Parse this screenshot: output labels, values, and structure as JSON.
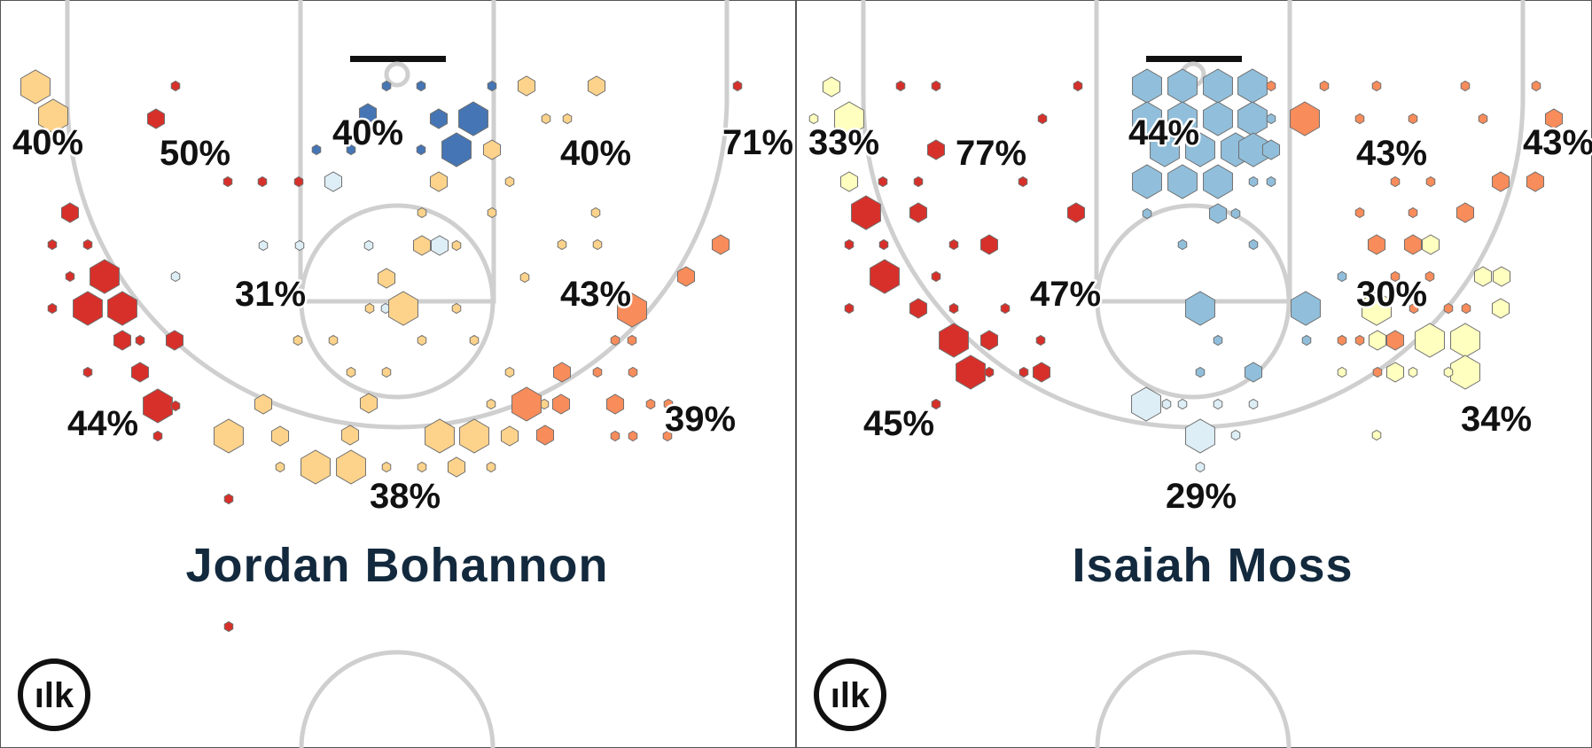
{
  "chart_data": [
    {
      "type": "hexbin",
      "player": "Jordan Bohannon",
      "zone_labels": [
        "40%",
        "50%",
        "40%",
        "40%",
        "71%",
        "31%",
        "43%",
        "44%",
        "39%",
        "38%"
      ],
      "colors": {
        "red": "#d7302a",
        "orange": "#f98c5b",
        "light_orange": "#fdd38c",
        "yellow": "#ffffbf",
        "light_blue": "#deeef6",
        "mid_blue": "#91bfdb",
        "blue": "#4575b4"
      },
      "hexes": [
        [
          "light_orange",
          3
        ],
        [
          "light_orange",
          3
        ],
        [
          "light_orange",
          1
        ],
        [
          "light_orange",
          1
        ],
        [
          "light_orange",
          2
        ],
        [
          "light_orange",
          2
        ],
        [
          "red",
          1
        ],
        [
          "red",
          1
        ],
        [
          "red",
          2
        ],
        [
          "red",
          2
        ],
        [
          "red",
          1
        ],
        [
          "red",
          2
        ],
        [
          "red",
          3
        ],
        [
          "red",
          1
        ],
        [
          "red",
          2
        ],
        [
          "red",
          3
        ],
        [
          "red",
          2
        ],
        [
          "red",
          2
        ],
        [
          "red",
          2
        ],
        [
          "red",
          1
        ],
        [
          "red",
          3
        ],
        [
          "red",
          3
        ],
        [
          "red",
          1
        ],
        [
          "red",
          1
        ],
        [
          "red",
          1
        ],
        [
          "red",
          1
        ],
        [
          "red",
          1
        ],
        [
          "red",
          1
        ],
        [
          "red",
          1
        ],
        [
          "red",
          1
        ],
        [
          "red",
          1
        ],
        [
          "red",
          1
        ],
        [
          "blue",
          3
        ],
        [
          "blue",
          2
        ],
        [
          "blue",
          3
        ],
        [
          "blue",
          1
        ],
        [
          "blue",
          2
        ],
        [
          "blue",
          1
        ],
        [
          "blue",
          1
        ],
        [
          "blue",
          1
        ],
        [
          "blue",
          1
        ],
        [
          "blue",
          1
        ],
        [
          "blue",
          1
        ],
        [
          "light_blue",
          2
        ],
        [
          "light_blue",
          1
        ],
        [
          "light_blue",
          2
        ],
        [
          "light_blue",
          1
        ],
        [
          "light_blue",
          1
        ],
        [
          "light_blue",
          1
        ],
        [
          "light_blue",
          1
        ],
        [
          "light_orange",
          2
        ],
        [
          "light_orange",
          2
        ],
        [
          "light_orange",
          3
        ],
        [
          "light_orange",
          1
        ],
        [
          "light_orange",
          1
        ],
        [
          "light_orange",
          1
        ],
        [
          "light_orange",
          2
        ],
        [
          "light_orange",
          2
        ],
        [
          "light_orange",
          1
        ],
        [
          "light_orange",
          1
        ],
        [
          "light_orange",
          1
        ],
        [
          "light_orange",
          1
        ],
        [
          "light_orange",
          1
        ],
        [
          "light_orange",
          1
        ],
        [
          "light_orange",
          1
        ],
        [
          "light_orange",
          1
        ],
        [
          "light_orange",
          1
        ],
        [
          "light_orange",
          1
        ],
        [
          "light_orange",
          1
        ],
        [
          "light_orange",
          1
        ],
        [
          "light_orange",
          1
        ],
        [
          "light_orange",
          1
        ],
        [
          "light_orange",
          2
        ],
        [
          "light_orange",
          3
        ],
        [
          "light_orange",
          2
        ],
        [
          "light_orange",
          3
        ],
        [
          "light_orange",
          3
        ],
        [
          "light_orange",
          2
        ],
        [
          "light_orange",
          2
        ],
        [
          "light_orange",
          3
        ],
        [
          "light_orange",
          3
        ],
        [
          "light_orange",
          2
        ],
        [
          "light_orange",
          1
        ],
        [
          "light_orange",
          1
        ],
        [
          "light_orange",
          1
        ],
        [
          "light_orange",
          1
        ],
        [
          "light_orange",
          1
        ],
        [
          "light_orange",
          1
        ],
        [
          "light_orange",
          2
        ],
        [
          "light_orange",
          1
        ],
        [
          "orange",
          3
        ],
        [
          "orange",
          2
        ],
        [
          "orange",
          2
        ],
        [
          "orange",
          2
        ],
        [
          "orange",
          3
        ],
        [
          "orange",
          2
        ],
        [
          "orange",
          2
        ],
        [
          "orange",
          1
        ],
        [
          "orange",
          1
        ],
        [
          "orange",
          1
        ],
        [
          "orange",
          1
        ],
        [
          "orange",
          1
        ],
        [
          "orange",
          2
        ],
        [
          "orange",
          1
        ],
        [
          "orange",
          1
        ],
        [
          "orange",
          1
        ],
        [
          "orange",
          1
        ]
      ]
    },
    {
      "type": "hexbin",
      "player": "Isaiah Moss",
      "zone_labels": [
        "33%",
        "77%",
        "44%",
        "43%",
        "43%",
        "47%",
        "30%",
        "45%",
        "34%",
        "29%"
      ],
      "colors": {
        "red": "#d7302a",
        "orange": "#f98c5b",
        "light_orange": "#fdd38c",
        "yellow": "#ffffbf",
        "light_blue": "#deeef6",
        "mid_blue": "#91bfdb",
        "blue": "#4575b4"
      },
      "hexes": [
        [
          "yellow",
          2
        ],
        [
          "yellow",
          3
        ],
        [
          "yellow",
          2
        ],
        [
          "yellow",
          1
        ],
        [
          "red",
          1
        ],
        [
          "red",
          1
        ],
        [
          "red",
          2
        ],
        [
          "red",
          1
        ],
        [
          "red",
          1
        ],
        [
          "red",
          2
        ],
        [
          "red",
          3
        ],
        [
          "red",
          1
        ],
        [
          "red",
          1
        ],
        [
          "red",
          3
        ],
        [
          "red",
          1
        ],
        [
          "red",
          1
        ],
        [
          "red",
          2
        ],
        [
          "red",
          1
        ],
        [
          "red",
          2
        ],
        [
          "red",
          1
        ],
        [
          "red",
          1
        ],
        [
          "red",
          2
        ],
        [
          "red",
          3
        ],
        [
          "red",
          3
        ],
        [
          "red",
          1
        ],
        [
          "red",
          2
        ],
        [
          "red",
          1
        ],
        [
          "red",
          1
        ],
        [
          "red",
          2
        ],
        [
          "red",
          1
        ],
        [
          "red",
          1
        ],
        [
          "red",
          1
        ],
        [
          "red",
          1
        ],
        [
          "red",
          1
        ],
        [
          "mid_blue",
          3
        ],
        [
          "mid_blue",
          3
        ],
        [
          "mid_blue",
          3
        ],
        [
          "mid_blue",
          3
        ],
        [
          "mid_blue",
          3
        ],
        [
          "mid_blue",
          3
        ],
        [
          "mid_blue",
          3
        ],
        [
          "mid_blue",
          3
        ],
        [
          "mid_blue",
          3
        ],
        [
          "mid_blue",
          3
        ],
        [
          "mid_blue",
          3
        ],
        [
          "mid_blue",
          3
        ],
        [
          "mid_blue",
          3
        ],
        [
          "mid_blue",
          3
        ],
        [
          "mid_blue",
          3
        ],
        [
          "mid_blue",
          2
        ],
        [
          "mid_blue",
          2
        ],
        [
          "mid_blue",
          1
        ],
        [
          "mid_blue",
          1
        ],
        [
          "mid_blue",
          3
        ],
        [
          "mid_blue",
          1
        ],
        [
          "mid_blue",
          1
        ],
        [
          "mid_blue",
          1
        ],
        [
          "mid_blue",
          1
        ],
        [
          "mid_blue",
          1
        ],
        [
          "mid_blue",
          3
        ],
        [
          "mid_blue",
          2
        ],
        [
          "mid_blue",
          1
        ],
        [
          "mid_blue",
          1
        ],
        [
          "mid_blue",
          1
        ],
        [
          "mid_blue",
          1
        ],
        [
          "light_blue",
          3
        ],
        [
          "light_blue",
          3
        ],
        [
          "light_blue",
          1
        ],
        [
          "light_blue",
          1
        ],
        [
          "light_blue",
          1
        ],
        [
          "light_blue",
          1
        ],
        [
          "light_blue",
          1
        ],
        [
          "light_blue",
          1
        ],
        [
          "orange",
          3
        ],
        [
          "orange",
          1
        ],
        [
          "orange",
          1
        ],
        [
          "orange",
          1
        ],
        [
          "orange",
          1
        ],
        [
          "orange",
          1
        ],
        [
          "orange",
          1
        ],
        [
          "orange",
          1
        ],
        [
          "orange",
          1
        ],
        [
          "orange",
          2
        ],
        [
          "orange",
          2
        ],
        [
          "orange",
          2
        ],
        [
          "orange",
          2
        ],
        [
          "orange",
          1
        ],
        [
          "orange",
          1
        ],
        [
          "orange",
          1
        ],
        [
          "orange",
          1
        ],
        [
          "orange",
          2
        ],
        [
          "orange",
          2
        ],
        [
          "orange",
          1
        ],
        [
          "orange",
          1
        ],
        [
          "orange",
          1
        ],
        [
          "orange",
          1
        ],
        [
          "orange",
          1
        ],
        [
          "orange",
          2
        ],
        [
          "orange",
          1
        ],
        [
          "orange",
          1
        ],
        [
          "orange",
          1
        ],
        [
          "yellow",
          2
        ],
        [
          "yellow",
          3
        ],
        [
          "yellow",
          3
        ],
        [
          "yellow",
          3
        ],
        [
          "yellow",
          2
        ],
        [
          "yellow",
          2
        ],
        [
          "yellow",
          2
        ],
        [
          "yellow",
          3
        ],
        [
          "yellow",
          2
        ],
        [
          "yellow",
          2
        ],
        [
          "yellow",
          1
        ],
        [
          "yellow",
          1
        ],
        [
          "yellow",
          1
        ],
        [
          "yellow",
          1
        ],
        [
          "yellow",
          1
        ],
        [
          "yellow",
          2
        ]
      ]
    }
  ],
  "logo": {
    "text": "ılk"
  }
}
